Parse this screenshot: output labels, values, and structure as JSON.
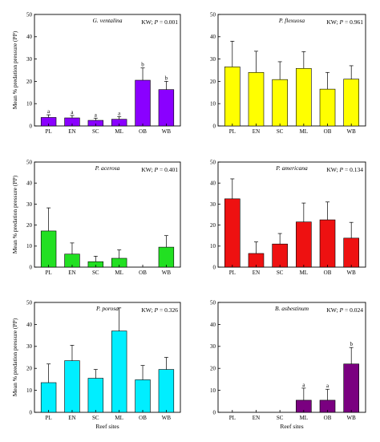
{
  "figure": {
    "ylabel": "Mean % predation pressure (PP)",
    "xlabel": "Reef sites",
    "stat_prefix": "KW; ",
    "stat_p_symbol": "P",
    "stat_sep": " = "
  },
  "chart_data": [
    {
      "type": "bar",
      "title": "G. ventalina",
      "stat_value": "0.001",
      "categories": [
        "PL",
        "EN",
        "SC",
        "ML",
        "OB",
        "WB"
      ],
      "values": [
        3.8,
        3.6,
        2.5,
        3.0,
        20.5,
        16.3
      ],
      "errors": [
        1.2,
        1.1,
        1.0,
        1.2,
        5.5,
        3.7
      ],
      "letters": [
        "a",
        "a",
        "a",
        "a",
        "b",
        "b"
      ],
      "color": "#8a00ff",
      "ylim": [
        0,
        50
      ],
      "yticks": [
        0,
        10,
        20,
        30,
        40,
        50
      ],
      "xlabel": "",
      "ylabel": "Mean % predation pressure (PP)"
    },
    {
      "type": "bar",
      "title": "P. flexuosa",
      "stat_value": "0.961",
      "categories": [
        "PL",
        "EN",
        "SC",
        "ML",
        "OB",
        "WB"
      ],
      "values": [
        26.5,
        24.0,
        20.8,
        25.8,
        16.5,
        21.0
      ],
      "errors": [
        11.5,
        9.5,
        8.0,
        7.5,
        7.5,
        6.0
      ],
      "letters": null,
      "color": "#ffff00",
      "ylim": [
        0,
        50
      ],
      "yticks": [
        0,
        10,
        20,
        30,
        40,
        50
      ],
      "xlabel": "",
      "ylabel": ""
    },
    {
      "type": "bar",
      "title": "P. acerosa",
      "stat_value": "0.401",
      "categories": [
        "PL",
        "EN",
        "SC",
        "ML",
        "OB",
        "WB"
      ],
      "values": [
        17.2,
        6.2,
        2.6,
        4.2,
        0,
        9.5
      ],
      "errors": [
        11.0,
        5.3,
        2.6,
        4.0,
        0,
        5.5
      ],
      "letters": null,
      "color": "#22e022",
      "ylim": [
        0,
        50
      ],
      "yticks": [
        0,
        10,
        20,
        30,
        40,
        50
      ],
      "xlabel": "",
      "ylabel": "Mean % predation pressure (PP)"
    },
    {
      "type": "bar",
      "title": "P. americana",
      "stat_value": "0.134",
      "categories": [
        "PL",
        "EN",
        "SC",
        "ML",
        "OB",
        "WB"
      ],
      "values": [
        32.5,
        6.5,
        11.0,
        21.5,
        22.5,
        13.8
      ],
      "errors": [
        9.5,
        5.5,
        5.0,
        9.0,
        8.5,
        7.5
      ],
      "letters": null,
      "color": "#ee1111",
      "ylim": [
        0,
        50
      ],
      "yticks": [
        0,
        10,
        20,
        30,
        40,
        50
      ],
      "xlabel": "",
      "ylabel": ""
    },
    {
      "type": "bar",
      "title": "P. porosa",
      "stat_value": "0.326",
      "categories": [
        "PL",
        "EN",
        "SC",
        "ML",
        "OB",
        "WB"
      ],
      "values": [
        13.5,
        23.5,
        15.5,
        37.0,
        14.8,
        19.5
      ],
      "errors": [
        8.5,
        7.0,
        4.0,
        10.5,
        6.5,
        5.5
      ],
      "letters": null,
      "color": "#00eeff",
      "ylim": [
        0,
        50
      ],
      "yticks": [
        0,
        10,
        20,
        30,
        40,
        50
      ],
      "xlabel": "Reef sites",
      "ylabel": "Mean % predation pressure (PP)"
    },
    {
      "type": "bar",
      "title": "B. asbestinum",
      "stat_value": "0.024",
      "categories": [
        "PL",
        "EN",
        "SC",
        "ML",
        "OB",
        "WB"
      ],
      "values": [
        0,
        0,
        0,
        5.5,
        5.5,
        22.0
      ],
      "errors": [
        0,
        0,
        0,
        5.5,
        5.0,
        7.5
      ],
      "letters": [
        "",
        "",
        "",
        "a",
        "a",
        "b"
      ],
      "color": "#7a0080",
      "ylim": [
        0,
        50
      ],
      "yticks": [
        0,
        10,
        20,
        30,
        40,
        50
      ],
      "xlabel": "Reef sites",
      "ylabel": ""
    }
  ]
}
